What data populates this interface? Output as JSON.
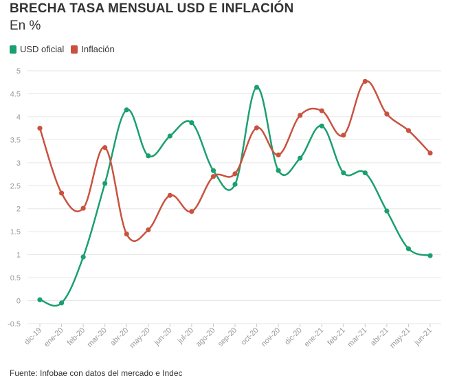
{
  "chart_data": {
    "type": "line",
    "title": "BRECHA TASA MENSUAL USD E INFLACIÓN",
    "subtitle": "En %",
    "source": "Fuente: Infobae con datos del mercado e Indec",
    "categories": [
      "dic-19",
      "ene-20",
      "feb-20",
      "mar-20",
      "abr-20",
      "may-20",
      "jun-20",
      "jul-20",
      "ago-20",
      "sep-20",
      "oct-20",
      "nov-20",
      "dic-20",
      "ene-21",
      "feb-21",
      "mar-21",
      "abr-21",
      "may-21",
      "jun-21"
    ],
    "series": [
      {
        "name": "USD oficial",
        "color": "#1aa06e",
        "values": [
          0.02,
          -0.05,
          0.95,
          2.55,
          4.15,
          3.15,
          3.58,
          3.87,
          2.83,
          2.53,
          4.64,
          2.83,
          3.1,
          3.8,
          2.78,
          2.78,
          1.95,
          1.13,
          0.98
        ]
      },
      {
        "name": "Inflación",
        "color": "#c9523f",
        "values": [
          3.75,
          2.34,
          2.01,
          3.33,
          1.45,
          1.54,
          2.29,
          1.94,
          2.7,
          2.76,
          3.76,
          3.17,
          4.03,
          4.13,
          3.6,
          4.77,
          4.06,
          3.7,
          3.21
        ]
      }
    ],
    "yticks": [
      "5",
      "4.5",
      "4",
      "3.5",
      "3",
      "2.5",
      "2",
      "1.5",
      "1",
      "0.5",
      "0",
      "-0.5"
    ],
    "ylim": [
      -0.5,
      5
    ],
    "grid": true,
    "legend_position": "top-left"
  }
}
